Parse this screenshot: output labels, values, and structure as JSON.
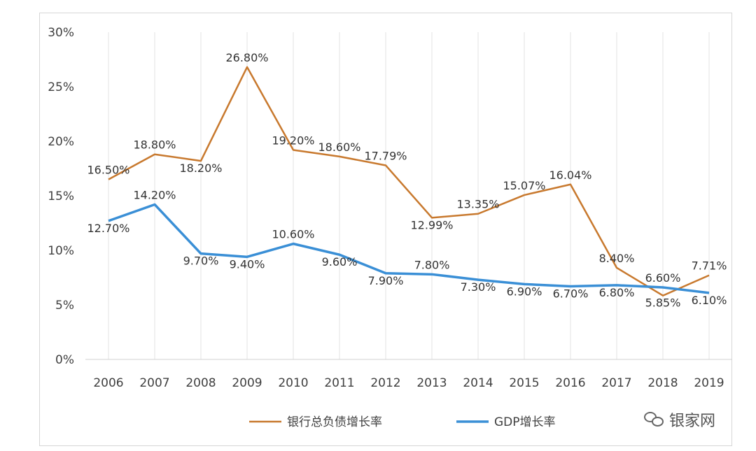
{
  "chart_data": {
    "type": "line",
    "categories": [
      "2006",
      "2007",
      "2008",
      "2009",
      "2010",
      "2011",
      "2012",
      "2013",
      "2014",
      "2015",
      "2016",
      "2017",
      "2018",
      "2019"
    ],
    "y_ticks": [
      "0%",
      "5%",
      "10%",
      "15%",
      "20%",
      "25%",
      "30%"
    ],
    "ylim": [
      0,
      30
    ],
    "grid": "vertical",
    "legend_position": "bottom",
    "series": [
      {
        "name": "银行总负债增长率",
        "color": "#c8792e",
        "values": [
          16.5,
          18.8,
          18.2,
          26.8,
          19.2,
          18.6,
          17.79,
          12.99,
          13.35,
          15.07,
          16.04,
          8.4,
          5.85,
          7.71
        ],
        "labels": [
          "16.50%",
          "18.80%",
          "18.20%",
          "26.80%",
          "19.20%",
          "18.60%",
          "17.79%",
          "12.99%",
          "13.35%",
          "15.07%",
          "16.04%",
          "8.40%",
          "5.85%",
          "7.71%"
        ]
      },
      {
        "name": "GDP增长率",
        "color": "#3a8fd6",
        "values": [
          12.7,
          14.2,
          9.7,
          9.4,
          10.6,
          9.6,
          7.9,
          7.8,
          7.3,
          6.9,
          6.7,
          6.8,
          6.6,
          6.1
        ],
        "labels": [
          "12.70%",
          "14.20%",
          "9.70%",
          "9.40%",
          "10.60%",
          "9.60%",
          "7.90%",
          "7.80%",
          "7.30%",
          "6.90%",
          "6.70%",
          "6.80%",
          "6.60%",
          "6.10%"
        ]
      }
    ]
  },
  "watermark": {
    "text": "银家网",
    "icon": "wechat-icon"
  }
}
